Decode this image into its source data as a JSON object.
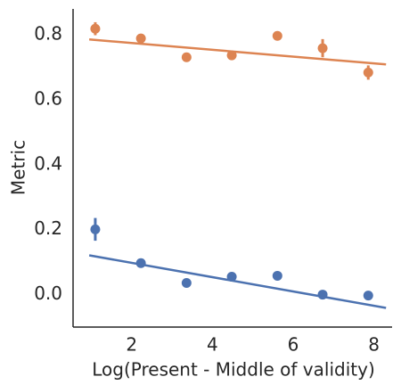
{
  "chart_data": {
    "type": "scatter",
    "xlabel": "Log(Present - Middle of validity)",
    "ylabel": "Metric",
    "x": [
      1.1,
      2.23,
      3.36,
      4.48,
      5.61,
      6.73,
      7.86
    ],
    "series": [
      {
        "color": "#dd8452",
        "values": [
          0.819,
          0.789,
          0.731,
          0.737,
          0.797,
          0.759,
          0.684
        ],
        "errors": [
          0.02,
          0.006,
          0.006,
          0.006,
          0.006,
          0.028,
          0.022
        ],
        "fit_x": [
          0.95,
          8.3
        ],
        "fit_values": [
          0.786,
          0.709
        ]
      },
      {
        "color": "#4c72b0",
        "values": [
          0.201,
          0.097,
          0.036,
          0.055,
          0.058,
          0.0,
          -0.003
        ],
        "errors": [
          0.035,
          0.006,
          0.006,
          0.006,
          0.006,
          0.006,
          0.006
        ],
        "fit_x": [
          0.95,
          8.3
        ],
        "fit_values": [
          0.121,
          -0.041
        ]
      }
    ],
    "xlim": [
      0.55,
      8.45
    ],
    "ylim": [
      -0.1,
      0.88
    ],
    "xticks": [
      2,
      4,
      6,
      8
    ],
    "yticks": [
      {
        "value": 0,
        "label": "0.0"
      },
      0.2,
      0.4,
      0.6,
      0.8
    ],
    "grid": false
  }
}
